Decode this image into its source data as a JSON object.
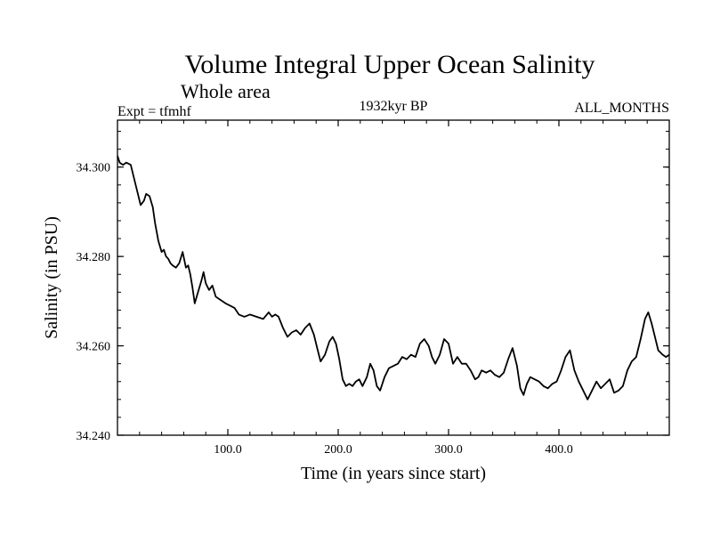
{
  "chart_data": {
    "type": "line",
    "title": "Volume Integral Upper Ocean Salinity",
    "subtitle": "Whole area",
    "left_label": "Expt = tfmhf",
    "center_label": "1932kyr BP",
    "right_label": "ALL_MONTHS",
    "xlabel": "Time (in years since start)",
    "ylabel": "Salinity (in PSU)",
    "xlim": [
      0,
      500
    ],
    "ylim": [
      34.24,
      34.3105
    ],
    "x_ticks": [
      {
        "value": 100,
        "label": "100.0"
      },
      {
        "value": 200,
        "label": "200.0"
      },
      {
        "value": 300,
        "label": "300.0"
      },
      {
        "value": 400,
        "label": "400.0"
      }
    ],
    "y_ticks": [
      {
        "value": 34.24,
        "label": "34.240"
      },
      {
        "value": 34.26,
        "label": "34.260"
      },
      {
        "value": 34.28,
        "label": "34.280"
      },
      {
        "value": 34.3,
        "label": "34.300"
      }
    ],
    "x_minor_step": 20,
    "y_minor_step": 0.004,
    "grid": false,
    "series": [
      {
        "name": "Salinity",
        "color": "#000000",
        "x": [
          0,
          2,
          5,
          8,
          12,
          15,
          18,
          21,
          24,
          26,
          29,
          32,
          34,
          37,
          40,
          42,
          44,
          46,
          48,
          50,
          53,
          56,
          59,
          62,
          64,
          66,
          68,
          70,
          73,
          76,
          78,
          80,
          83,
          86,
          89,
          92,
          95,
          98,
          102,
          106,
          110,
          115,
          120,
          126,
          132,
          137,
          140,
          143,
          146,
          150,
          154,
          158,
          162,
          166,
          170,
          174,
          178,
          181,
          184,
          188,
          192,
          195,
          198,
          201,
          204,
          207,
          210,
          213,
          216,
          219,
          222,
          226,
          229,
          232,
          235,
          238,
          242,
          246,
          250,
          254,
          258,
          262,
          266,
          270,
          274,
          278,
          282,
          285,
          288,
          292,
          296,
          300,
          304,
          308,
          312,
          316,
          320,
          324,
          327,
          330,
          334,
          338,
          342,
          346,
          350,
          354,
          358,
          362,
          365,
          368,
          371,
          374,
          378,
          382,
          386,
          390,
          394,
          398,
          402,
          406,
          410,
          414,
          418,
          422,
          426,
          430,
          434,
          438,
          442,
          446,
          450,
          454,
          458,
          462,
          466,
          470,
          474,
          478,
          481,
          484,
          487,
          490,
          494,
          497,
          500
        ],
        "values": [
          34.3025,
          34.301,
          34.3005,
          34.301,
          34.3005,
          34.2975,
          34.2945,
          34.2915,
          34.2925,
          34.294,
          34.2935,
          34.291,
          34.2875,
          34.2835,
          34.281,
          34.2815,
          34.28,
          34.2795,
          34.2785,
          34.278,
          34.2775,
          34.2785,
          34.281,
          34.2775,
          34.278,
          34.276,
          34.273,
          34.2695,
          34.272,
          34.2745,
          34.2765,
          34.274,
          34.2725,
          34.2735,
          34.271,
          34.2705,
          34.27,
          34.2695,
          34.269,
          34.2685,
          34.267,
          34.2665,
          34.267,
          34.2665,
          34.266,
          34.2675,
          34.2665,
          34.267,
          34.2665,
          34.264,
          34.262,
          34.263,
          34.2635,
          34.2625,
          34.264,
          34.265,
          34.2625,
          34.2595,
          34.2565,
          34.258,
          34.261,
          34.262,
          34.2605,
          34.257,
          34.2525,
          34.251,
          34.2515,
          34.251,
          34.252,
          34.2525,
          34.251,
          34.253,
          34.256,
          34.2545,
          34.251,
          34.25,
          34.253,
          34.255,
          34.2555,
          34.256,
          34.2575,
          34.257,
          34.258,
          34.2575,
          34.2605,
          34.2615,
          34.26,
          34.2575,
          34.256,
          34.258,
          34.2615,
          34.2605,
          34.256,
          34.2575,
          34.256,
          34.256,
          34.2545,
          34.2525,
          34.253,
          34.2545,
          34.254,
          34.2545,
          34.2535,
          34.253,
          34.254,
          34.257,
          34.2595,
          34.2555,
          34.2505,
          34.249,
          34.2515,
          34.253,
          34.2525,
          34.252,
          34.251,
          34.2505,
          34.2515,
          34.252,
          34.2545,
          34.2575,
          34.259,
          34.2545,
          34.252,
          34.25,
          34.248,
          34.25,
          34.252,
          34.2505,
          34.2515,
          34.2525,
          34.2495,
          34.25,
          34.251,
          34.2545,
          34.2565,
          34.2575,
          34.2615,
          34.266,
          34.2675,
          34.265,
          34.262,
          34.259,
          34.258,
          34.2575,
          34.258
        ]
      }
    ]
  }
}
